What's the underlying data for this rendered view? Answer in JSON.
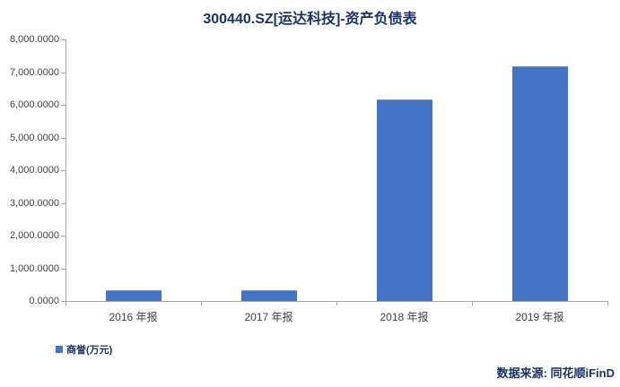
{
  "title": "300440.SZ[运达科技]-资产负债表",
  "legend": {
    "label": "商誉(万元)"
  },
  "source": "数据来源: 同花顺iFinD",
  "colors": {
    "title": "#1b3264",
    "bar": "#4472c4",
    "bar_border": "#6593d1",
    "axis": "#a6a6a6",
    "tick_label": "#404040",
    "legend_text": "#1b3264",
    "source_text": "#1b3264"
  },
  "chart_data": {
    "type": "bar",
    "title": "300440.SZ[运达科技]-资产负债表",
    "categories": [
      "2016 年报",
      "2017 年报",
      "2018 年报",
      "2019 年报"
    ],
    "series": [
      {
        "name": "商誉(万元)",
        "values": [
          320,
          320,
          6160,
          7180
        ]
      }
    ],
    "xlabel": "",
    "ylabel": "",
    "ylim": [
      0,
      8000
    ],
    "ytick_step": 1000,
    "ytick_labels": [
      "0.0000",
      "1,000.0000",
      "2,000.0000",
      "3,000.0000",
      "4,000.0000",
      "5,000.0000",
      "6,000.0000",
      "7,000.0000",
      "8,000.0000"
    ],
    "grid": false,
    "legend_position": "bottom-left",
    "value_unit": "万元"
  }
}
